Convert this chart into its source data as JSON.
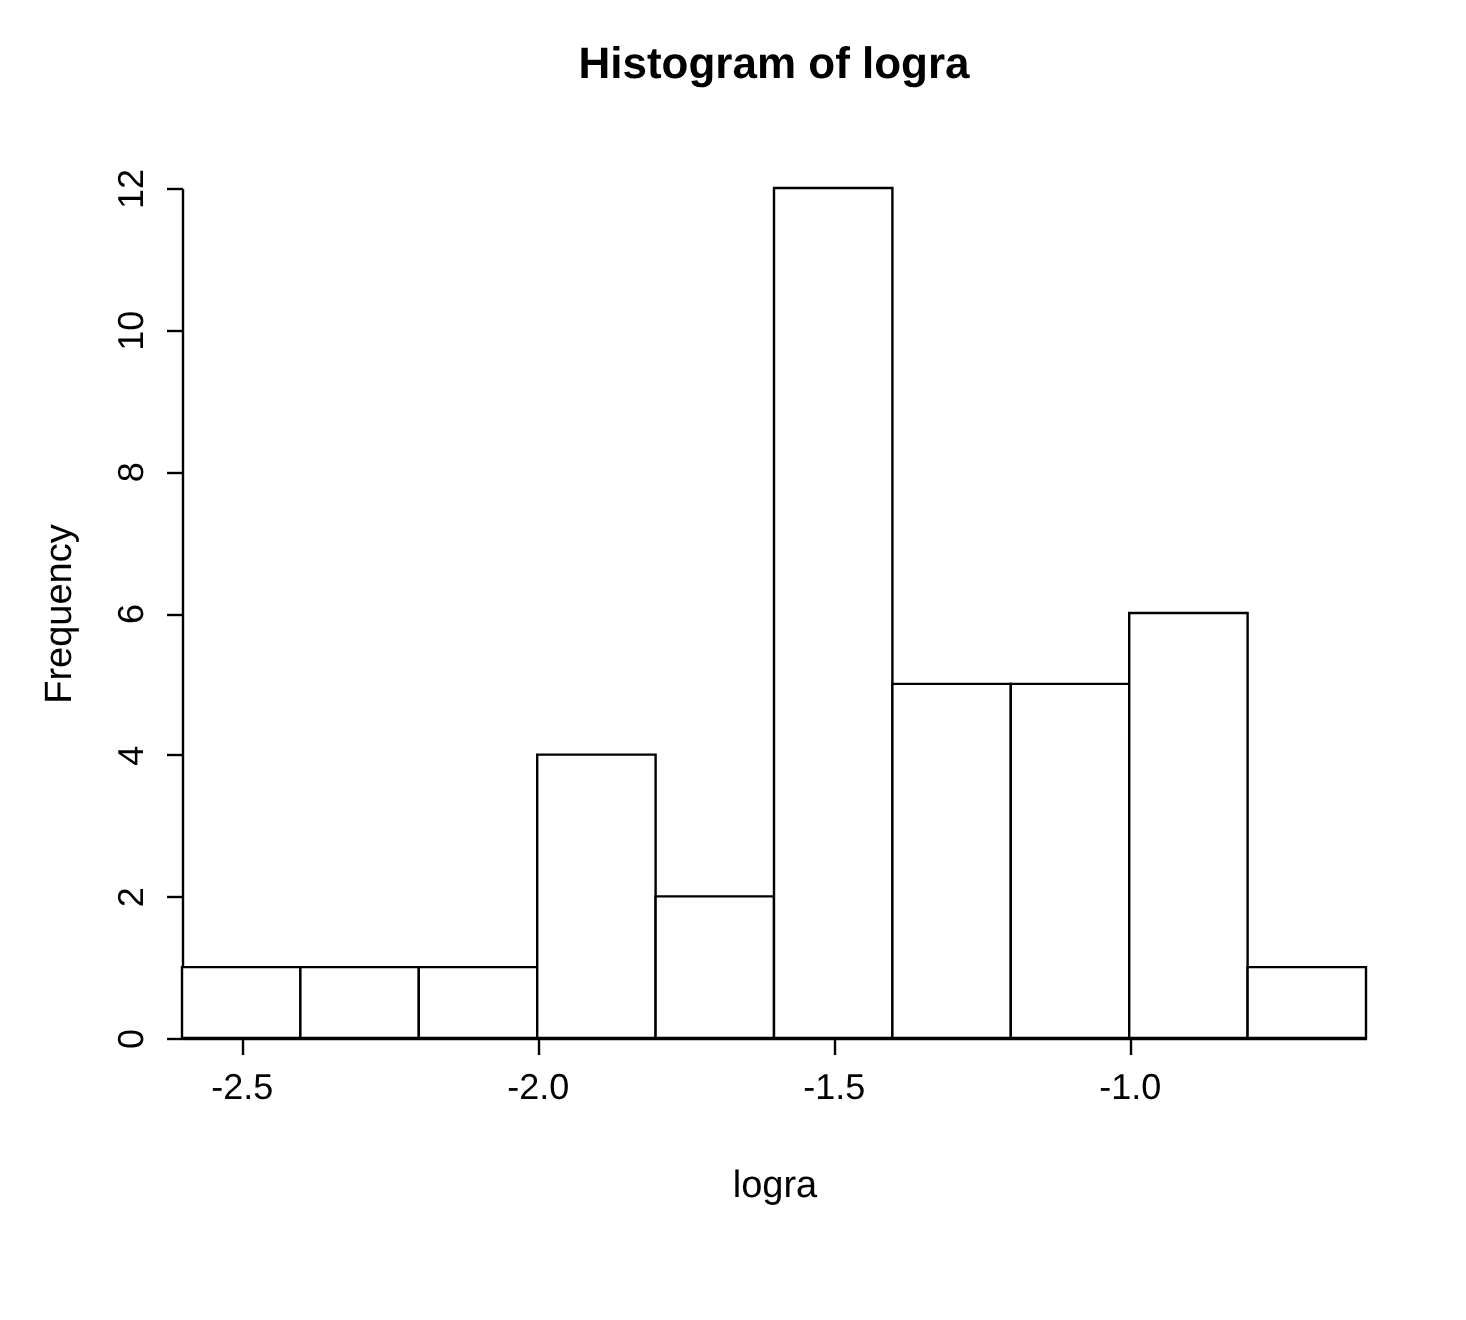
{
  "chart_data": {
    "type": "histogram",
    "title": "Histogram of logra",
    "xlabel": "logra",
    "ylabel": "Frequency",
    "bins": [
      -2.6,
      -2.4,
      -2.2,
      -2.0,
      -1.8,
      -1.6,
      -1.4,
      -1.2,
      -1.0,
      -0.8,
      -0.6
    ],
    "values": [
      1,
      1,
      1,
      4,
      2,
      12,
      5,
      5,
      6,
      1
    ],
    "color": "#ffffff",
    "xlim": [
      -2.6,
      -0.6
    ],
    "xticks": [
      -2.5,
      {
        "value": -2,
        "label": "-2.0"
      },
      -1.5,
      {
        "value": -1,
        "label": "-1.0"
      }
    ],
    "ylim": [
      0,
      12
    ],
    "yticks": [
      0,
      2,
      4,
      6,
      8,
      10,
      12
    ]
  }
}
